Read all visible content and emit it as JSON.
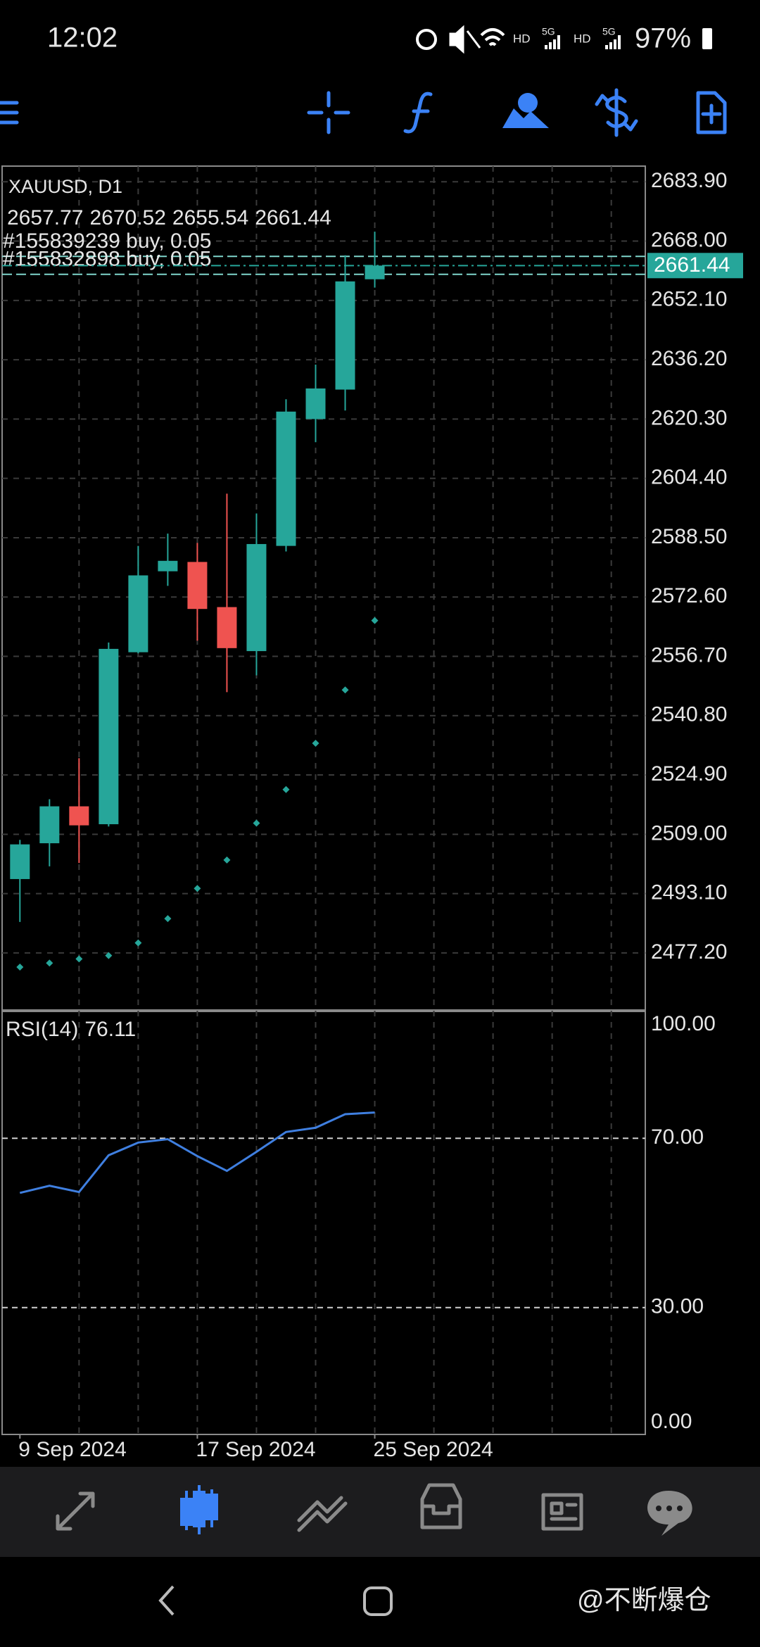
{
  "status_bar": {
    "time": "12:02",
    "battery": "97%",
    "network": [
      "HD",
      "5G",
      "HD",
      "5G"
    ]
  },
  "chart_data": {
    "type": "candlestick",
    "symbol": "XAUUSD, D1",
    "categories": [
      "9 Sep 2024",
      null,
      null,
      null,
      null,
      null,
      "17 Sep 2024",
      null,
      null,
      null,
      null,
      null,
      "25 Sep 2024"
    ],
    "open": [
      2497.0,
      2506.6,
      2516.5,
      2511.7,
      2557.8,
      2579.5,
      2582.0,
      2569.9,
      2558.1,
      2586.3,
      2620.3,
      2628.2,
      2657.77
    ],
    "high": [
      2507.5,
      2518.4,
      2529.4,
      2560.4,
      2586.3,
      2589.6,
      2587.1,
      2600.3,
      2595.0,
      2625.6,
      2634.9,
      2664.2,
      2670.52
    ],
    "low": [
      2485.5,
      2500.4,
      2501.3,
      2511.1,
      2557.5,
      2575.6,
      2560.9,
      2547.1,
      2551.6,
      2584.8,
      2614.1,
      2622.6,
      2655.54
    ],
    "close": [
      2506.3,
      2516.5,
      2511.4,
      2558.7,
      2578.4,
      2582.3,
      2569.4,
      2558.9,
      2586.8,
      2622.3,
      2628.5,
      2657.2,
      2661.44
    ],
    "up_color": "#26a69a",
    "down_color": "#ef5350",
    "sar_values": [
      2473.4,
      2474.5,
      2475.6,
      2476.5,
      2479.9,
      2486.4,
      2494.5,
      2502.1,
      2512.0,
      2521.0,
      2533.4,
      2547.7,
      2566.3
    ],
    "sar_color": "#26a69a",
    "orders": [
      {
        "label": "#155839239 buy, 0.05",
        "price": 2663.9
      },
      {
        "label": "#155832898 buy, 0.05",
        "price": 2659.1
      }
    ],
    "ylim": [
      2461.9,
      2688.1
    ],
    "yticks": [
      {
        "value": 2683.9,
        "label": "2683.90"
      },
      {
        "value": 2668.0,
        "label": "2668.00"
      },
      {
        "value": 2652.1,
        "label": "2652.10"
      },
      {
        "value": 2636.2,
        "label": "2636.20"
      },
      {
        "value": 2620.3,
        "label": "2620.30"
      },
      {
        "value": 2604.4,
        "label": "2604.40"
      },
      {
        "value": 2588.5,
        "label": "2588.50"
      },
      {
        "value": 2572.6,
        "label": "2572.60"
      },
      {
        "value": 2556.7,
        "label": "2556.70"
      },
      {
        "value": 2540.8,
        "label": "2540.80"
      },
      {
        "value": 2524.9,
        "label": "2524.90"
      },
      {
        "value": 2509.0,
        "label": "2509.00"
      },
      {
        "value": 2493.1,
        "label": "2493.10"
      },
      {
        "value": 2477.2,
        "label": "2477.20"
      }
    ],
    "grid": true,
    "rsi": {
      "label": "RSI(14)",
      "values": [
        57.1,
        58.8,
        57.3,
        66.0,
        69.0,
        69.8,
        65.8,
        62.3,
        66.8,
        71.5,
        72.5,
        75.7,
        76.11
      ],
      "color": "#3f7fe0",
      "ylim": [
        0,
        100
      ],
      "yticks": [
        {
          "value": 100,
          "label": "100.00"
        },
        {
          "value": 70,
          "label": "70.00"
        },
        {
          "value": 30,
          "label": "30.00"
        },
        {
          "value": 0,
          "label": "0.00"
        }
      ]
    }
  },
  "watermark": "@不断爆仓"
}
